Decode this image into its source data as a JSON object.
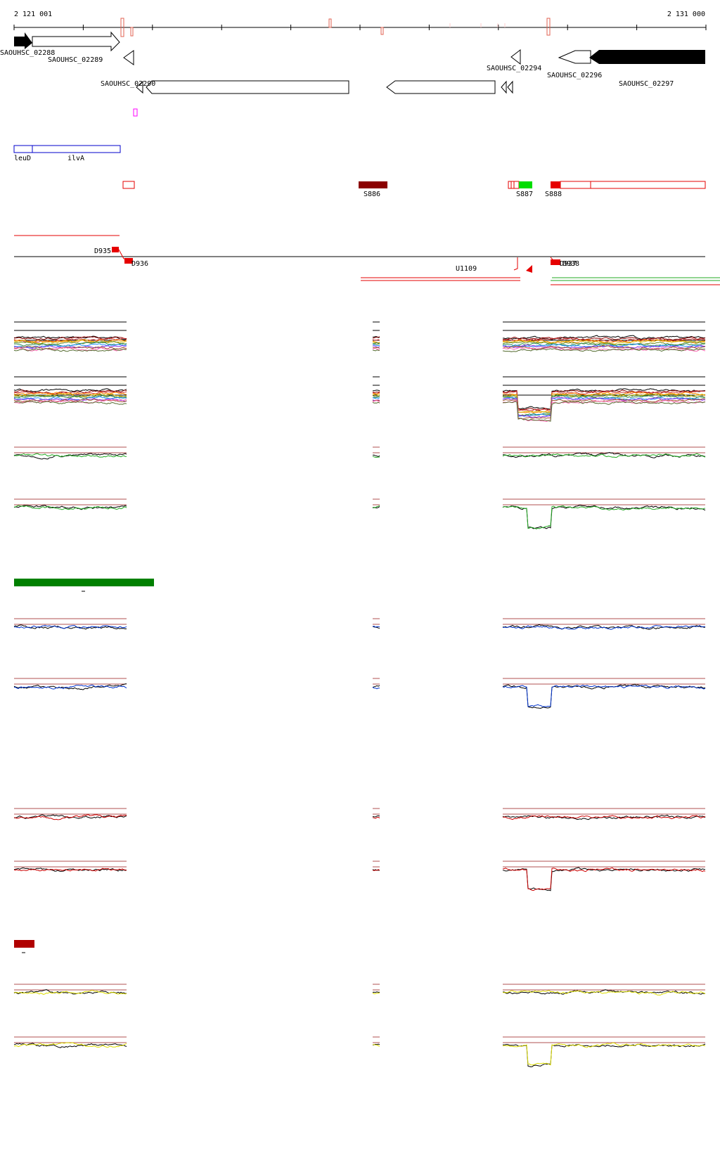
{
  "coordinates": {
    "start_label": "2 121 001",
    "end_label": "2 131 000"
  },
  "genes": [
    {
      "name": "SAOUHSC_02288",
      "label": "SAOUHSC_02288",
      "strand": "+",
      "style": "filled"
    },
    {
      "name": "SAOUHSC_02289",
      "label": "SAOUHSC_02289",
      "strand": "+",
      "style": "open"
    },
    {
      "name": "SAOUHSC_02290",
      "label": "SAOUHSC_02290",
      "strand": "-",
      "style": "open"
    },
    {
      "name": "SAOUHSC_02294",
      "label": "SAOUHSC_02294",
      "strand": "-",
      "style": "open"
    },
    {
      "name": "SAOUHSC_02296",
      "label": "SAOUHSC_02296",
      "strand": "-",
      "style": "open"
    },
    {
      "name": "SAOUHSC_02297",
      "label": "SAOUHSC_02297",
      "strand": "-",
      "style": "filled"
    }
  ],
  "operon_labels": [
    "leuD",
    "ilvA"
  ],
  "segments": [
    "S886",
    "S887",
    "S888"
  ],
  "downstream_labels": [
    "D935",
    "D936",
    "D937",
    "D938"
  ],
  "upstream_label": "U1109",
  "colors": {
    "gene_outline": "#000000",
    "feature_red": "#e60000",
    "segment_dark": "#8b0000",
    "segment_green": "#00dd00",
    "operon_blue": "#0000cc",
    "magenta": "#ff00ff",
    "bar_green": "#008000",
    "bar_red": "#b00000",
    "blue_trace": "#0033cc",
    "yellow_trace": "#dddd00",
    "green_trace": "#22aa22"
  }
}
